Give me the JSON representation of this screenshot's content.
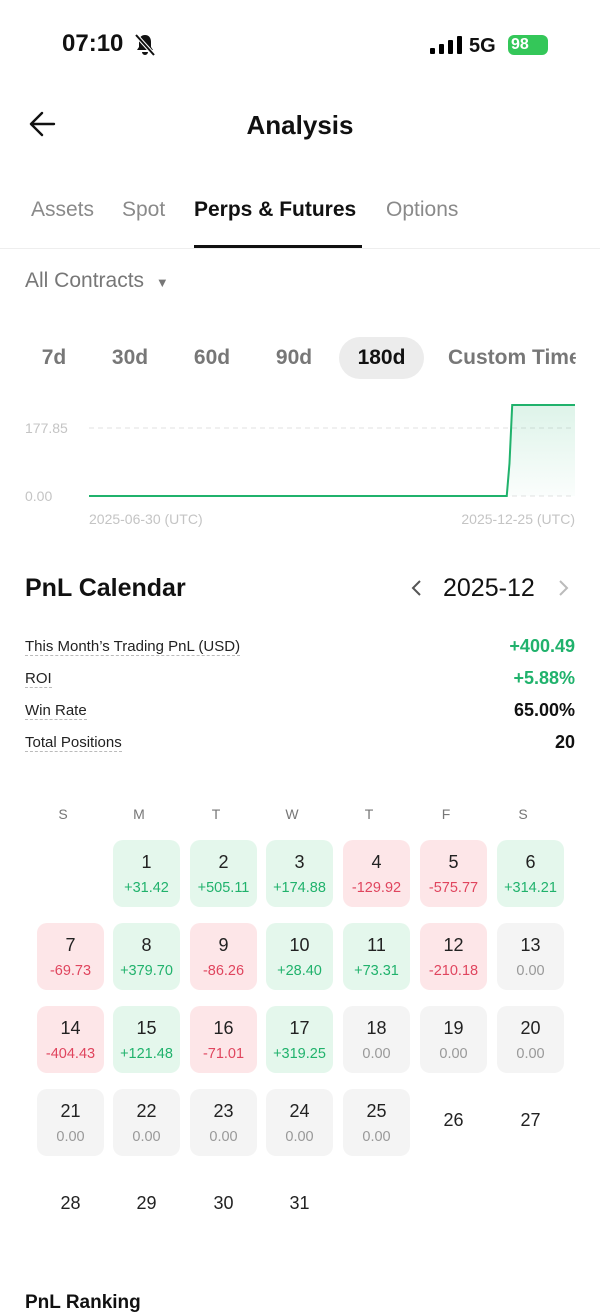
{
  "status": {
    "time": "07:10",
    "network": "5G",
    "battery": "98"
  },
  "header": {
    "title": "Analysis"
  },
  "tabs": {
    "items": [
      "Assets",
      "Spot",
      "Perps & Futures",
      "Options"
    ],
    "active": 2
  },
  "filter": "All Contracts",
  "ranges": {
    "items": [
      "7d",
      "30d",
      "60d",
      "90d",
      "180d",
      "Custom Time"
    ],
    "active": 4
  },
  "chart_data": {
    "type": "line",
    "x": [
      "2025-06-30",
      "2025-11-30",
      "2025-12-01",
      "2025-12-02",
      "2025-12-25"
    ],
    "series": [
      {
        "color": "#20b26c",
        "values": [
          0,
          0,
          85,
          238,
          238
        ]
      }
    ],
    "xlim": [
      "2025-06-30",
      "2025-12-25"
    ],
    "xticks": [
      {
        "value": "2025-06-30",
        "label": "2025-06-30 (UTC)"
      },
      {
        "value": "2025-12-25",
        "label": "2025-12-25 (UTC)"
      }
    ],
    "ylim": [
      0,
      238
    ],
    "yticks": [
      {
        "value": 0,
        "label": "0.00"
      },
      {
        "value": 177.85,
        "label": "177.85"
      }
    ],
    "grid": true
  },
  "calendar": {
    "title": "PnL Calendar",
    "month": "2025-12",
    "stats": [
      {
        "label": "This Month’s Trading PnL (USD)",
        "value": "+400.49"
      },
      {
        "label": "ROI",
        "value": "+5.88%"
      },
      {
        "label": "Win Rate",
        "value": "65.00%"
      },
      {
        "label": "Total Positions",
        "value": "20"
      }
    ],
    "weekdays": [
      "S",
      "M",
      "T",
      "W",
      "T",
      "F",
      "S"
    ],
    "days": [
      {
        "day": 1,
        "pnl": "+31.42"
      },
      {
        "day": 2,
        "pnl": "+505.11"
      },
      {
        "day": 3,
        "pnl": "+174.88"
      },
      {
        "day": 4,
        "pnl": "-129.92"
      },
      {
        "day": 5,
        "pnl": "-575.77"
      },
      {
        "day": 6,
        "pnl": "+314.21"
      },
      {
        "day": 7,
        "pnl": "-69.73"
      },
      {
        "day": 8,
        "pnl": "+379.70"
      },
      {
        "day": 9,
        "pnl": "-86.26"
      },
      {
        "day": 10,
        "pnl": "+28.40"
      },
      {
        "day": 11,
        "pnl": "+73.31"
      },
      {
        "day": 12,
        "pnl": "-210.18"
      },
      {
        "day": 13,
        "pnl": "0.00"
      },
      {
        "day": 14,
        "pnl": "-404.43"
      },
      {
        "day": 15,
        "pnl": "+121.48"
      },
      {
        "day": 16,
        "pnl": "-71.01"
      },
      {
        "day": 17,
        "pnl": "+319.25"
      },
      {
        "day": 18,
        "pnl": "0.00"
      },
      {
        "day": 19,
        "pnl": "0.00"
      },
      {
        "day": 20,
        "pnl": "0.00"
      },
      {
        "day": 21,
        "pnl": "0.00"
      },
      {
        "day": 22,
        "pnl": "0.00"
      },
      {
        "day": 23,
        "pnl": "0.00"
      },
      {
        "day": 24,
        "pnl": "0.00"
      },
      {
        "day": 25,
        "pnl": "0.00"
      },
      {
        "day": 26
      },
      {
        "day": 27
      },
      {
        "day": 28
      },
      {
        "day": 29
      },
      {
        "day": 30
      },
      {
        "day": 31
      }
    ]
  },
  "section": {
    "title": "PnL Ranking"
  }
}
